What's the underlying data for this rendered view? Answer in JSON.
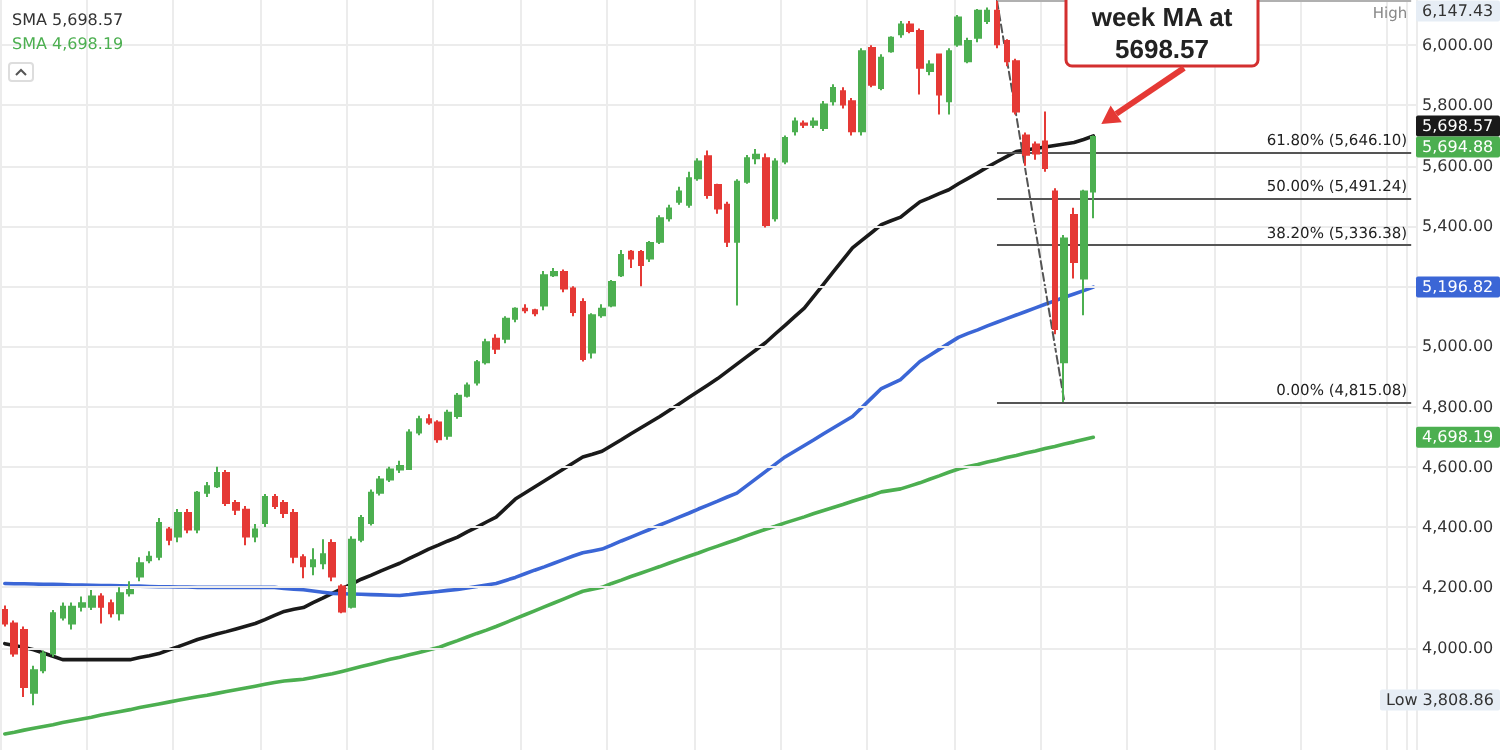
{
  "chart_data": {
    "type": "candlestick",
    "categories": [
      null,
      null,
      null,
      null,
      null,
      null,
      null,
      null,
      null,
      null,
      null,
      null,
      null,
      null,
      null,
      null,
      null,
      null,
      null,
      null,
      null,
      null,
      null,
      null,
      null,
      null,
      null,
      null,
      null,
      null,
      null,
      null,
      null,
      null,
      null,
      null,
      null,
      null,
      null,
      null,
      null,
      null,
      null,
      null,
      null,
      null,
      null,
      null,
      null,
      null,
      null,
      null,
      null,
      null,
      null,
      null,
      null,
      null,
      null,
      null,
      null,
      null,
      null,
      null,
      null,
      null,
      null,
      null,
      null,
      null,
      null,
      null,
      null,
      null,
      null,
      null,
      null,
      null,
      null,
      null,
      null,
      null,
      null,
      null,
      null,
      null,
      null,
      null,
      null,
      null,
      null,
      null,
      null,
      null,
      null,
      null,
      null,
      null,
      null,
      null,
      null,
      null,
      null,
      null,
      null,
      null,
      null,
      null,
      null,
      null,
      null,
      null,
      null,
      null,
      null,
      null,
      null,
      null,
      null,
      null,
      null,
      null,
      null,
      null,
      null,
      null,
      null,
      null,
      null,
      null,
      null,
      null,
      null,
      null,
      null,
      null,
      null,
      null,
      null,
      null,
      null,
      null,
      null,
      null,
      null,
      null,
      null
    ],
    "ohlc": [
      [
        4125,
        4140,
        4070,
        4080
      ],
      [
        4080,
        4090,
        3970,
        3980
      ],
      [
        4058,
        4070,
        3836,
        3869
      ],
      [
        3850,
        3940,
        3808.86,
        3925
      ],
      [
        3925,
        3990,
        3915,
        3980
      ],
      [
        3980,
        4125,
        3970,
        4114
      ],
      [
        4100,
        4150,
        4090,
        4136
      ],
      [
        4080,
        4150,
        4060,
        4136
      ],
      [
        4136,
        4170,
        4120,
        4147
      ],
      [
        4136,
        4191,
        4125,
        4170
      ],
      [
        4170,
        4180,
        4080,
        4136
      ],
      [
        4147,
        4160,
        4100,
        4114
      ],
      [
        4114,
        4200,
        4090,
        4180
      ],
      [
        4180,
        4220,
        4170,
        4191
      ],
      [
        4236,
        4300,
        4220,
        4280
      ],
      [
        4290,
        4320,
        4280,
        4302
      ],
      [
        4302,
        4430,
        4290,
        4414
      ],
      [
        4392,
        4400,
        4340,
        4358
      ],
      [
        4369,
        4460,
        4350,
        4447
      ],
      [
        4447,
        4460,
        4380,
        4392
      ],
      [
        4392,
        4520,
        4380,
        4514
      ],
      [
        4514,
        4550,
        4500,
        4536
      ],
      [
        4536,
        4600,
        4530,
        4580
      ],
      [
        4580,
        4590,
        4470,
        4480
      ],
      [
        4480,
        4490,
        4440,
        4458
      ],
      [
        4458,
        4470,
        4340,
        4369
      ],
      [
        4369,
        4410,
        4350,
        4392
      ],
      [
        4414,
        4510,
        4400,
        4500
      ],
      [
        4500,
        4510,
        4460,
        4470
      ],
      [
        4480,
        4490,
        4430,
        4447
      ],
      [
        4447,
        4460,
        4280,
        4302
      ],
      [
        4300,
        4310,
        4230,
        4270
      ],
      [
        4270,
        4330,
        4240,
        4290
      ],
      [
        4280,
        4360,
        4260,
        4310
      ],
      [
        4347,
        4360,
        4220,
        4236
      ],
      [
        4203,
        4210,
        4114,
        4120
      ],
      [
        4136,
        4370,
        4130,
        4358
      ],
      [
        4358,
        4440,
        4350,
        4430
      ],
      [
        4414,
        4525,
        4405,
        4514
      ],
      [
        4514,
        4570,
        4505,
        4558
      ],
      [
        4558,
        4600,
        4550,
        4591
      ],
      [
        4591,
        4620,
        4580,
        4603
      ],
      [
        4593,
        4725,
        4590,
        4714
      ],
      [
        4714,
        4770,
        4705,
        4758
      ],
      [
        4758,
        4775,
        4740,
        4747
      ],
      [
        4747,
        4755,
        4680,
        4692
      ],
      [
        4703,
        4790,
        4690,
        4780
      ],
      [
        4769,
        4845,
        4760,
        4836
      ],
      [
        4836,
        4880,
        4830,
        4870
      ],
      [
        4880,
        4955,
        4870,
        4947
      ],
      [
        4947,
        5025,
        4940,
        5014
      ],
      [
        5025,
        5040,
        4975,
        4992
      ],
      [
        5025,
        5100,
        5010,
        5092
      ],
      [
        5092,
        5130,
        5080,
        5125
      ],
      [
        5125,
        5140,
        5110,
        5120
      ],
      [
        5120,
        5125,
        5100,
        5110
      ],
      [
        5136,
        5250,
        5120,
        5236
      ],
      [
        5236,
        5260,
        5230,
        5247
      ],
      [
        5247,
        5255,
        5180,
        5192
      ],
      [
        5192,
        5200,
        5100,
        5114
      ],
      [
        5147,
        5160,
        4950,
        4958
      ],
      [
        4980,
        5110,
        4960,
        5103
      ],
      [
        5103,
        5140,
        5095,
        5125
      ],
      [
        5136,
        5220,
        5130,
        5214
      ],
      [
        5236,
        5320,
        5230,
        5303
      ],
      [
        5314,
        5320,
        5260,
        5292
      ],
      [
        5313,
        5320,
        5200,
        5270
      ],
      [
        5292,
        5350,
        5280,
        5343
      ],
      [
        5347,
        5435,
        5340,
        5425
      ],
      [
        5425,
        5470,
        5415,
        5458
      ],
      [
        5480,
        5530,
        5470,
        5514
      ],
      [
        5470,
        5580,
        5460,
        5558
      ],
      [
        5558,
        5625,
        5550,
        5614
      ],
      [
        5631,
        5650,
        5490,
        5503
      ],
      [
        5536,
        5540,
        5440,
        5458
      ],
      [
        5470,
        5480,
        5330,
        5347
      ],
      [
        5347,
        5555,
        5136,
        5547
      ],
      [
        5547,
        5635,
        5540,
        5625
      ],
      [
        5625,
        5655,
        5605,
        5636
      ],
      [
        5625,
        5640,
        5395,
        5403
      ],
      [
        5425,
        5625,
        5415,
        5614
      ],
      [
        5614,
        5700,
        5605,
        5692
      ],
      [
        5714,
        5760,
        5700,
        5747
      ],
      [
        5740,
        5750,
        5725,
        5736
      ],
      [
        5736,
        5760,
        5725,
        5747
      ],
      [
        5725,
        5815,
        5715,
        5803
      ],
      [
        5814,
        5870,
        5800,
        5858
      ],
      [
        5847,
        5860,
        5790,
        5803
      ],
      [
        5814,
        5825,
        5700,
        5714
      ],
      [
        5714,
        5990,
        5700,
        5980
      ],
      [
        5991,
        6000,
        5860,
        5869
      ],
      [
        5858,
        5970,
        5850,
        5958
      ],
      [
        5980,
        6030,
        5975,
        6025
      ],
      [
        6036,
        6080,
        6025,
        6069
      ],
      [
        6069,
        6080,
        6040,
        6047
      ],
      [
        6047,
        6055,
        5836,
        5925
      ],
      [
        5914,
        5950,
        5900,
        5936
      ],
      [
        5969,
        5970,
        5770,
        5836
      ],
      [
        5814,
        5990,
        5770,
        5980
      ],
      [
        6002,
        6100,
        5995,
        6092
      ],
      [
        5947,
        6025,
        5940,
        6014
      ],
      [
        6025,
        6120,
        6010,
        6114
      ],
      [
        6080,
        6125,
        6070,
        6114
      ],
      [
        6114,
        6147.43,
        5990,
        6003
      ],
      [
        6014,
        6020,
        5930,
        5947
      ],
      [
        5947,
        5955,
        5770,
        5780
      ],
      [
        5700,
        5710,
        5600,
        5636
      ],
      [
        5670,
        5680,
        5620,
        5640
      ],
      [
        5680,
        5780,
        5580,
        5592
      ],
      [
        5514,
        5525,
        5040,
        5058
      ],
      [
        4947,
        5370,
        4815.08,
        5358
      ],
      [
        5436,
        5460,
        5225,
        5280
      ],
      [
        5225,
        5520,
        5103,
        5514
      ],
      [
        5514,
        5700,
        5425,
        5694.88
      ],
      null,
      null,
      null,
      null,
      null,
      null,
      null,
      null,
      null,
      null,
      null,
      null,
      null,
      null,
      null,
      null,
      null,
      null,
      null,
      null,
      null,
      null,
      null,
      null,
      null,
      null,
      null,
      null,
      null,
      null,
      null,
      null,
      null
    ],
    "series": [
      {
        "type": "line",
        "color": "#1a1a1a",
        "values": [
          4013,
          4007,
          4000,
          3993,
          3982,
          3971,
          3960,
          3960,
          3960,
          3960,
          3960,
          3960,
          3960,
          3960,
          3967,
          3973,
          3980,
          3992,
          4003,
          4015,
          4027,
          4036,
          4045,
          4053,
          4062,
          4071,
          4080,
          4093,
          4107,
          4120,
          4127,
          4133,
          4149,
          4164,
          4180,
          4196,
          4211,
          4227,
          4240,
          4254,
          4267,
          4280,
          4296,
          4311,
          4327,
          4340,
          4354,
          4367,
          4384,
          4400,
          4417,
          4433,
          4463,
          4493,
          4513,
          4533,
          4553,
          4573,
          4593,
          4613,
          4633,
          4642,
          4652,
          4671,
          4690,
          4710,
          4729,
          4748,
          4767,
          4788,
          4809,
          4830,
          4851,
          4872,
          4893,
          4917,
          4941,
          4965,
          4989,
          5013,
          5042,
          5070,
          5099,
          5127,
          5167,
          5207,
          5247,
          5287,
          5327,
          5353,
          5378,
          5404,
          5417,
          5429,
          5455,
          5480,
          5493,
          5507,
          5520,
          5540,
          5558,
          5576,
          5595,
          5613,
          5630,
          5647,
          5652,
          5657,
          5662,
          5667,
          5672,
          5677,
          5687,
          5698.57,
          null,
          null,
          null,
          null,
          null,
          null,
          null,
          null,
          null,
          null,
          null,
          null,
          null,
          null,
          null,
          null,
          null,
          null,
          null,
          null,
          null,
          null,
          null,
          null,
          null,
          null,
          null,
          null,
          null,
          null,
          null,
          null,
          null
        ]
      },
      {
        "type": "line",
        "color": "#3b66d6",
        "values": [
          4213,
          4212,
          4212,
          4211,
          4210,
          4210,
          4209,
          4208,
          4208,
          4207,
          4206,
          4206,
          4205,
          4204,
          4204,
          4203,
          4202,
          4202,
          4201,
          4201,
          4200,
          4200,
          4200,
          4200,
          4200,
          4200,
          4200,
          4200,
          4200,
          4196,
          4194,
          4192,
          4188,
          4184,
          4180,
          4179,
          4178,
          4177,
          4176,
          4175,
          4174,
          4173,
          4176,
          4180,
          4183,
          4186,
          4190,
          4193,
          4198,
          4203,
          4208,
          4213,
          4223,
          4233,
          4245,
          4257,
          4268,
          4280,
          4292,
          4304,
          4315,
          4321,
          4327,
          4340,
          4354,
          4367,
          4380,
          4393,
          4407,
          4420,
          4433,
          4446,
          4460,
          4473,
          4486,
          4500,
          4513,
          4537,
          4561,
          4585,
          4609,
          4633,
          4652,
          4671,
          4690,
          4710,
          4729,
          4748,
          4767,
          4798,
          4829,
          4860,
          4875,
          4890,
          4920,
          4950,
          4970,
          4990,
          5010,
          5030,
          5043,
          5055,
          5068,
          5080,
          5092,
          5104,
          5116,
          5128,
          5140,
          5151,
          5163,
          5174,
          5185,
          5196.82,
          null,
          null,
          null,
          null,
          null,
          null,
          null,
          null,
          null,
          null,
          null,
          null,
          null,
          null,
          null,
          null,
          null,
          null,
          null,
          null,
          null,
          null,
          null,
          null,
          null,
          null,
          null,
          null,
          null,
          null,
          null,
          null,
          null
        ]
      },
      {
        "type": "line",
        "color": "#4caf50",
        "values": [
          3713,
          3719,
          3726,
          3732,
          3738,
          3744,
          3751,
          3757,
          3763,
          3769,
          3776,
          3782,
          3788,
          3794,
          3801,
          3807,
          3813,
          3819,
          3825,
          3831,
          3837,
          3842,
          3848,
          3854,
          3860,
          3866,
          3872,
          3878,
          3884,
          3889,
          3892,
          3895,
          3901,
          3907,
          3913,
          3921,
          3929,
          3937,
          3945,
          3953,
          3961,
          3968,
          3976,
          3984,
          3992,
          4000,
          4012,
          4023,
          4035,
          4047,
          4058,
          4070,
          4083,
          4096,
          4109,
          4122,
          4135,
          4148,
          4161,
          4174,
          4187,
          4194,
          4200,
          4213,
          4224,
          4236,
          4247,
          4258,
          4269,
          4281,
          4292,
          4303,
          4314,
          4326,
          4337,
          4348,
          4359,
          4371,
          4382,
          4393,
          4403,
          4414,
          4424,
          4434,
          4445,
          4455,
          4465,
          4475,
          4486,
          4496,
          4506,
          4517,
          4522,
          4527,
          4537,
          4547,
          4559,
          4570,
          4582,
          4593,
          4601,
          4608,
          4616,
          4623,
          4631,
          4638,
          4646,
          4653,
          4661,
          4668,
          4676,
          4683,
          4691,
          4698.19,
          null,
          null,
          null,
          null,
          null,
          null,
          null,
          null,
          null,
          null,
          null,
          null,
          null,
          null,
          null,
          null,
          null,
          null,
          null,
          null,
          null,
          null,
          null,
          null,
          null,
          null,
          null,
          null,
          null,
          null,
          null,
          null,
          null
        ]
      },
      {
        "type": "line",
        "color": "#555555",
        "line_style": "dashed",
        "values": [
          null,
          null,
          null,
          null,
          null,
          null,
          null,
          null,
          null,
          null,
          null,
          null,
          null,
          null,
          null,
          null,
          null,
          null,
          null,
          null,
          null,
          null,
          null,
          null,
          null,
          null,
          null,
          null,
          null,
          null,
          null,
          null,
          null,
          null,
          null,
          null,
          null,
          null,
          null,
          null,
          null,
          null,
          null,
          null,
          null,
          null,
          null,
          null,
          null,
          null,
          null,
          null,
          null,
          null,
          null,
          null,
          null,
          null,
          null,
          null,
          null,
          null,
          null,
          null,
          null,
          null,
          null,
          null,
          null,
          null,
          null,
          null,
          null,
          null,
          null,
          null,
          null,
          null,
          null,
          null,
          null,
          null,
          null,
          null,
          null,
          null,
          null,
          null,
          null,
          null,
          null,
          null,
          null,
          null,
          null,
          null,
          null,
          null,
          null,
          null,
          null,
          null,
          null,
          6147.43,
          5957,
          5767,
          5576,
          5386,
          5196,
          5005,
          4815.08,
          null,
          null,
          null,
          null,
          null,
          null,
          null,
          null,
          null,
          null,
          null,
          null,
          null,
          null,
          null,
          null,
          null,
          null,
          null,
          null,
          null,
          null,
          null,
          null,
          null,
          null,
          null,
          null,
          null,
          null,
          null,
          null,
          null,
          null,
          null,
          null
        ]
      }
    ],
    "ylim": [
      3660,
      6150
    ],
    "yticks": [
      {
        "value": 4000,
        "label": "4,000.00"
      },
      {
        "value": 4200,
        "label": "4,200.00"
      },
      {
        "value": 4400,
        "label": "4,400.00"
      },
      {
        "value": 4600,
        "label": "4,600.00"
      },
      {
        "value": 4800,
        "label": "4,800.00"
      },
      {
        "value": 5000,
        "label": "5,000.00"
      },
      {
        "value": 5200,
        "label": null
      },
      {
        "value": 5400,
        "label": "5,400.00"
      },
      {
        "value": 5600,
        "label": "5,600.00"
      },
      {
        "value": 5800,
        "label": "5,800.00"
      },
      {
        "value": 6000,
        "label": "6,000.00"
      }
    ],
    "tick_labels": "y",
    "grid": true,
    "ref_lines": [
      {
        "axis": "y",
        "value": 6147.43,
        "label": "High",
        "color": "#b0b0b0"
      },
      {
        "axis": "y",
        "value": 5646.1,
        "label": "61.80% (5,646.10)",
        "color": "#555555"
      },
      {
        "axis": "y",
        "value": 5491.24,
        "label": "50.00% (5,491.24)",
        "color": "#555555"
      },
      {
        "axis": "y",
        "value": 5336.38,
        "label": "38.20% (5,336.38)",
        "color": "#555555"
      },
      {
        "axis": "y",
        "value": 4815.08,
        "label": "0.00% (4,815.08)",
        "color": "#555555"
      }
    ],
    "annotations": [
      "SMA 5,698.57",
      "SMA 4,698.19",
      "week MA at 5698.57",
      "6,147.43",
      "Low 3,808.86",
      "5,698.57",
      "5,196.82",
      "4,698.19",
      "5,694.88"
    ]
  }
}
